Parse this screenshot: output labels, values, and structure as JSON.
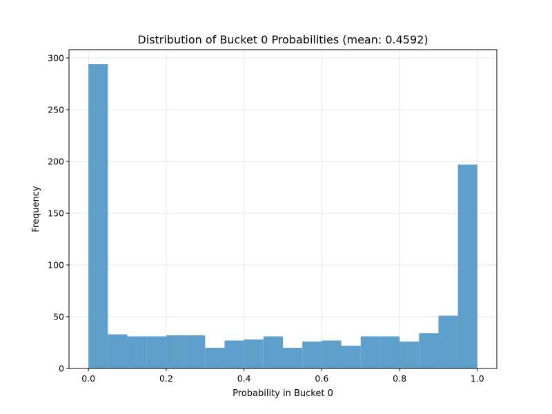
{
  "chart_data": {
    "type": "bar",
    "title": "Distribution of Bucket 0 Probabilities (mean: 0.4592)",
    "xlabel": "Probability in Bucket 0",
    "ylabel": "Frequency",
    "bin_edges": [
      0.0,
      0.05,
      0.1,
      0.15,
      0.2,
      0.25,
      0.3,
      0.35,
      0.4,
      0.45,
      0.5,
      0.55,
      0.6,
      0.65,
      0.7,
      0.75,
      0.8,
      0.85,
      0.9,
      0.95,
      1.0
    ],
    "values": [
      294,
      33,
      31,
      31,
      32,
      32,
      20,
      27,
      28,
      31,
      20,
      26,
      27,
      22,
      31,
      31,
      26,
      34,
      51,
      197
    ],
    "xlim": [
      -0.05,
      1.05
    ],
    "ylim": [
      0,
      308
    ],
    "x_ticks": [
      "0.0",
      "0.2",
      "0.4",
      "0.6",
      "0.8",
      "1.0"
    ],
    "x_tick_values": [
      0.0,
      0.2,
      0.4,
      0.6,
      0.8,
      1.0
    ],
    "y_ticks": [
      "0",
      "50",
      "100",
      "150",
      "200",
      "250",
      "300"
    ],
    "y_tick_values": [
      0,
      50,
      100,
      150,
      200,
      250,
      300
    ],
    "grid": true,
    "bar_color": "#5f9fcc"
  }
}
